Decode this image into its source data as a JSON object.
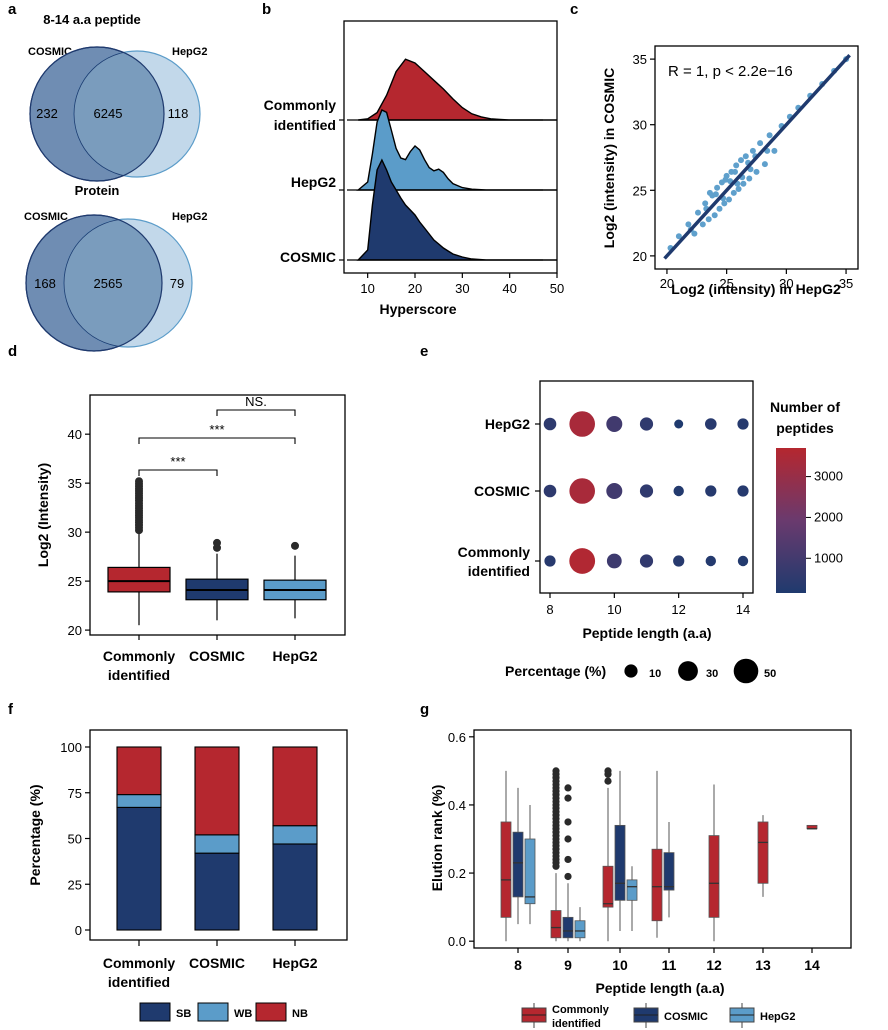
{
  "colors": {
    "common": "#b5272f",
    "cosmic": "#1f3a6e",
    "hepg2": "#5b9cc9",
    "venn_left": "#6f8db3",
    "venn_right": "#b7d1e6",
    "venn_overlap": "#7a9cbd",
    "scatter": "#5fa0cc"
  },
  "panel_a": {
    "letter": "a",
    "peptide_title": "8-14 a.a peptide",
    "protein_title": "Protein",
    "left_label": "COSMIC",
    "right_label": "HepG2",
    "peptide": {
      "left_only": "232",
      "overlap": "6245",
      "right_only": "118"
    },
    "protein": {
      "left_only": "168",
      "overlap": "2565",
      "right_only": "79"
    }
  },
  "chart_data": [
    {
      "panel": "b",
      "type": "area",
      "title": "",
      "xlabel": "Hyperscore",
      "xlim": [
        5,
        50
      ],
      "xticks": [
        "10",
        "20",
        "30",
        "40",
        "50"
      ],
      "series": [
        {
          "name": "Commonly identified",
          "x": [
            8,
            10,
            12,
            14,
            16,
            18,
            20,
            22,
            24,
            26,
            28,
            30,
            32,
            34,
            36,
            38,
            40,
            42,
            44,
            46,
            48,
            50
          ],
          "density": [
            0.0,
            0.02,
            0.12,
            0.4,
            0.78,
            0.98,
            0.92,
            0.78,
            0.64,
            0.5,
            0.34,
            0.2,
            0.1,
            0.05,
            0.02,
            0.01,
            0.0,
            0.0,
            0.0,
            0.0,
            0.0,
            0.0
          ]
        },
        {
          "name": "HepG2",
          "x": [
            8,
            10,
            11,
            12,
            13,
            14,
            15,
            16,
            17,
            18,
            19,
            20,
            21,
            22,
            23,
            24,
            25,
            26,
            27,
            28,
            30,
            32,
            35,
            40,
            45,
            50
          ],
          "density": [
            0.0,
            0.1,
            0.45,
            0.85,
            1.0,
            0.97,
            0.75,
            0.52,
            0.4,
            0.38,
            0.48,
            0.55,
            0.5,
            0.38,
            0.28,
            0.24,
            0.26,
            0.22,
            0.14,
            0.08,
            0.03,
            0.01,
            0.0,
            0.0,
            0.0,
            0.0
          ]
        },
        {
          "name": "COSMIC",
          "x": [
            8,
            10,
            11,
            12,
            13,
            14,
            15,
            16,
            17,
            18,
            19,
            20,
            21,
            22,
            23,
            24,
            25,
            26,
            27,
            28,
            30,
            32,
            35,
            40,
            45,
            50
          ],
          "density": [
            0.0,
            0.1,
            0.55,
            0.9,
            1.0,
            0.9,
            0.78,
            0.7,
            0.62,
            0.55,
            0.5,
            0.45,
            0.38,
            0.32,
            0.26,
            0.2,
            0.16,
            0.12,
            0.09,
            0.06,
            0.03,
            0.01,
            0.0,
            0.0,
            0.0,
            0.0
          ]
        }
      ],
      "categories": [
        "Commonly identified",
        "HepG2",
        "COSMIC"
      ]
    },
    {
      "panel": "c",
      "type": "scatter",
      "title": "",
      "annotation": "R = 1, p < 2.2e−16",
      "xlabel": "Log2 (intensity) in HepG2",
      "ylabel": "Log2 (intensity) in COSMIC",
      "xlim": [
        19,
        36
      ],
      "ylim": [
        19,
        36
      ],
      "xticks": [
        "20",
        "25",
        "30",
        "35"
      ],
      "yticks": [
        "20",
        "25",
        "30",
        "35"
      ],
      "fit_line": {
        "x": [
          19.8,
          35.3
        ],
        "y": [
          19.8,
          35.3
        ]
      },
      "points": [
        [
          20.3,
          20.6
        ],
        [
          21.0,
          21.5
        ],
        [
          21.8,
          22.4
        ],
        [
          22.3,
          21.7
        ],
        [
          22.6,
          23.3
        ],
        [
          23.0,
          22.4
        ],
        [
          23.2,
          24.0
        ],
        [
          23.5,
          22.8
        ],
        [
          23.8,
          24.6
        ],
        [
          24.0,
          23.1
        ],
        [
          24.2,
          25.2
        ],
        [
          24.4,
          23.6
        ],
        [
          24.6,
          25.6
        ],
        [
          24.8,
          24.0
        ],
        [
          25.0,
          26.1
        ],
        [
          25.2,
          24.3
        ],
        [
          25.4,
          26.4
        ],
        [
          25.6,
          24.8
        ],
        [
          25.8,
          26.9
        ],
        [
          26.0,
          25.1
        ],
        [
          26.2,
          27.3
        ],
        [
          26.4,
          25.5
        ],
        [
          26.6,
          27.6
        ],
        [
          26.9,
          25.9
        ],
        [
          27.2,
          28.0
        ],
        [
          27.5,
          26.4
        ],
        [
          27.8,
          28.6
        ],
        [
          28.2,
          27.0
        ],
        [
          28.6,
          29.2
        ],
        [
          29.0,
          28.0
        ],
        [
          29.6,
          29.9
        ],
        [
          30.3,
          30.6
        ],
        [
          31.0,
          31.3
        ],
        [
          32.0,
          32.2
        ],
        [
          33.0,
          33.1
        ],
        [
          34.0,
          34.1
        ],
        [
          35.0,
          35.0
        ],
        [
          23.6,
          24.8
        ],
        [
          24.1,
          24.7
        ],
        [
          24.9,
          25.8
        ],
        [
          25.3,
          25.7
        ],
        [
          25.7,
          26.4
        ],
        [
          26.3,
          26.0
        ],
        [
          26.8,
          27.1
        ],
        [
          27.4,
          27.6
        ],
        [
          22.0,
          22.0
        ],
        [
          23.3,
          23.6
        ],
        [
          24.7,
          24.4
        ],
        [
          25.9,
          25.5
        ],
        [
          27.0,
          26.6
        ],
        [
          28.4,
          28.0
        ]
      ]
    },
    {
      "panel": "d",
      "type": "box",
      "title": "",
      "ylabel": "Log2 (Intensity)",
      "ylim": [
        19.5,
        44
      ],
      "yticks": [
        "20",
        "25",
        "30",
        "35",
        "40"
      ],
      "categories": [
        "Commonly identified",
        "COSMIC",
        "HepG2"
      ],
      "boxes": [
        {
          "name": "Commonly identified",
          "min": 20.5,
          "q1": 23.9,
          "median": 25.0,
          "q3": 26.4,
          "max": 30.0,
          "outliers_from": 30.2,
          "outliers_to": 35.2
        },
        {
          "name": "COSMIC",
          "min": 21.0,
          "q1": 23.1,
          "median": 24.1,
          "q3": 25.2,
          "max": 27.8,
          "outliers": [
            28.4,
            28.9
          ]
        },
        {
          "name": "HepG2",
          "min": 21.2,
          "q1": 23.1,
          "median": 24.1,
          "q3": 25.1,
          "max": 27.6,
          "outliers": [
            28.6
          ]
        }
      ],
      "significance": [
        {
          "pair": [
            "Commonly identified",
            "COSMIC"
          ],
          "label": "***"
        },
        {
          "pair": [
            "Commonly identified",
            "HepG2"
          ],
          "label": "***"
        },
        {
          "pair": [
            "COSMIC",
            "HepG2"
          ],
          "label": "NS."
        }
      ]
    },
    {
      "panel": "e",
      "type": "scatter",
      "title": "",
      "xlabel": "Peptide length (a.a)",
      "xticks": [
        "8",
        "10",
        "12",
        "14"
      ],
      "categories": [
        "HepG2",
        "COSMIC",
        "Commonly identified"
      ],
      "x": [
        8,
        9,
        10,
        11,
        12,
        13,
        14
      ],
      "color_legend_title": "Number of peptides",
      "color_ticks": [
        "1000",
        "2000",
        "3000"
      ],
      "size_legend_title": "Percentage (%)",
      "size_ticks": [
        "10",
        "30",
        "50"
      ],
      "series": [
        {
          "name": "HepG2",
          "percentage": [
            9,
            55,
            17,
            10,
            3,
            7,
            6
          ],
          "count": [
            550,
            3400,
            1000,
            600,
            200,
            420,
            360
          ]
        },
        {
          "name": "COSMIC",
          "percentage": [
            9,
            55,
            17,
            10,
            5,
            6,
            6
          ],
          "count": [
            550,
            3400,
            1000,
            600,
            300,
            360,
            360
          ]
        },
        {
          "name": "Commonly identified",
          "percentage": [
            6,
            57,
            14,
            10,
            6,
            5,
            5
          ],
          "count": [
            400,
            3600,
            900,
            640,
            380,
            320,
            300
          ]
        }
      ]
    },
    {
      "panel": "f",
      "type": "bar",
      "stacked": true,
      "title": "",
      "ylabel": "Percentage (%)",
      "ylim": [
        0,
        100
      ],
      "yticks": [
        "0",
        "25",
        "50",
        "75",
        "100"
      ],
      "categories": [
        "Commonly identified",
        "COSMIC",
        "HepG2"
      ],
      "series": [
        {
          "name": "SB",
          "values": [
            67,
            42,
            47
          ]
        },
        {
          "name": "WB",
          "values": [
            7,
            10,
            10
          ]
        },
        {
          "name": "NB",
          "values": [
            26,
            48,
            43
          ]
        }
      ],
      "legend": "bottom"
    },
    {
      "panel": "g",
      "type": "box",
      "title": "",
      "xlabel": "Peptide length (a.a)",
      "ylabel": "Elution rank (%)",
      "ylim": [
        -0.02,
        0.62
      ],
      "yticks": [
        "0.0",
        "0.2",
        "0.4",
        "0.6"
      ],
      "categories": [
        "8",
        "9",
        "10",
        "11",
        "12",
        "13",
        "14"
      ],
      "legend": "bottom",
      "series_names": [
        "Commonly identified",
        "COSMIC",
        "HepG2"
      ],
      "boxes": [
        {
          "len": "8",
          "series": "Commonly identified",
          "min": 0.0,
          "q1": 0.07,
          "median": 0.18,
          "q3": 0.35,
          "max": 0.5
        },
        {
          "len": "8",
          "series": "COSMIC",
          "min": 0.05,
          "q1": 0.13,
          "median": 0.23,
          "q3": 0.32,
          "max": 0.45
        },
        {
          "len": "8",
          "series": "HepG2",
          "min": 0.05,
          "q1": 0.11,
          "median": 0.13,
          "q3": 0.3,
          "max": 0.4
        },
        {
          "len": "9",
          "series": "Commonly identified",
          "min": 0.0,
          "q1": 0.01,
          "median": 0.04,
          "q3": 0.09,
          "max": 0.2,
          "outliers_from": 0.22,
          "outliers_to": 0.5
        },
        {
          "len": "9",
          "series": "COSMIC",
          "min": 0.0,
          "q1": 0.01,
          "median": 0.03,
          "q3": 0.07,
          "max": 0.17,
          "outliers": [
            0.19,
            0.24,
            0.3,
            0.35,
            0.42,
            0.45
          ]
        },
        {
          "len": "9",
          "series": "HepG2",
          "min": 0.0,
          "q1": 0.01,
          "median": 0.03,
          "q3": 0.06,
          "max": 0.1
        },
        {
          "len": "10",
          "series": "Commonly identified",
          "min": 0.0,
          "q1": 0.1,
          "median": 0.11,
          "q3": 0.22,
          "max": 0.45,
          "outliers": [
            0.47,
            0.49,
            0.5
          ]
        },
        {
          "len": "10",
          "series": "COSMIC",
          "min": 0.03,
          "q1": 0.12,
          "median": 0.17,
          "q3": 0.34,
          "max": 0.5
        },
        {
          "len": "10",
          "series": "HepG2",
          "min": 0.03,
          "q1": 0.12,
          "median": 0.16,
          "q3": 0.18,
          "max": 0.22
        },
        {
          "len": "11",
          "series": "Commonly identified",
          "min": 0.01,
          "q1": 0.06,
          "median": 0.16,
          "q3": 0.27,
          "max": 0.5
        },
        {
          "len": "11",
          "series": "COSMIC",
          "min": 0.07,
          "q1": 0.15,
          "median": 0.16,
          "q3": 0.26,
          "max": 0.35
        },
        {
          "len": "12",
          "series": "Commonly identified",
          "min": 0.0,
          "q1": 0.07,
          "median": 0.17,
          "q3": 0.31,
          "max": 0.46
        },
        {
          "len": "13",
          "series": "Commonly identified",
          "min": 0.13,
          "q1": 0.17,
          "median": 0.29,
          "q3": 0.35,
          "max": 0.37
        },
        {
          "len": "14",
          "series": "Commonly identified",
          "min": 0.33,
          "q1": 0.33,
          "median": 0.33,
          "q3": 0.34,
          "max": 0.34
        }
      ]
    }
  ],
  "legend_f": [
    {
      "label": "SB",
      "color": "#1f3a6e"
    },
    {
      "label": "WB",
      "color": "#5b9cc9"
    },
    {
      "label": "NB",
      "color": "#b5272f"
    }
  ],
  "legend_g": [
    {
      "label1": "Commonly",
      "label2": "identified",
      "color": "#b5272f"
    },
    {
      "label1": "COSMIC",
      "label2": "",
      "color": "#1f3a6e"
    },
    {
      "label1": "HepG2",
      "label2": "",
      "color": "#5b9cc9"
    }
  ]
}
